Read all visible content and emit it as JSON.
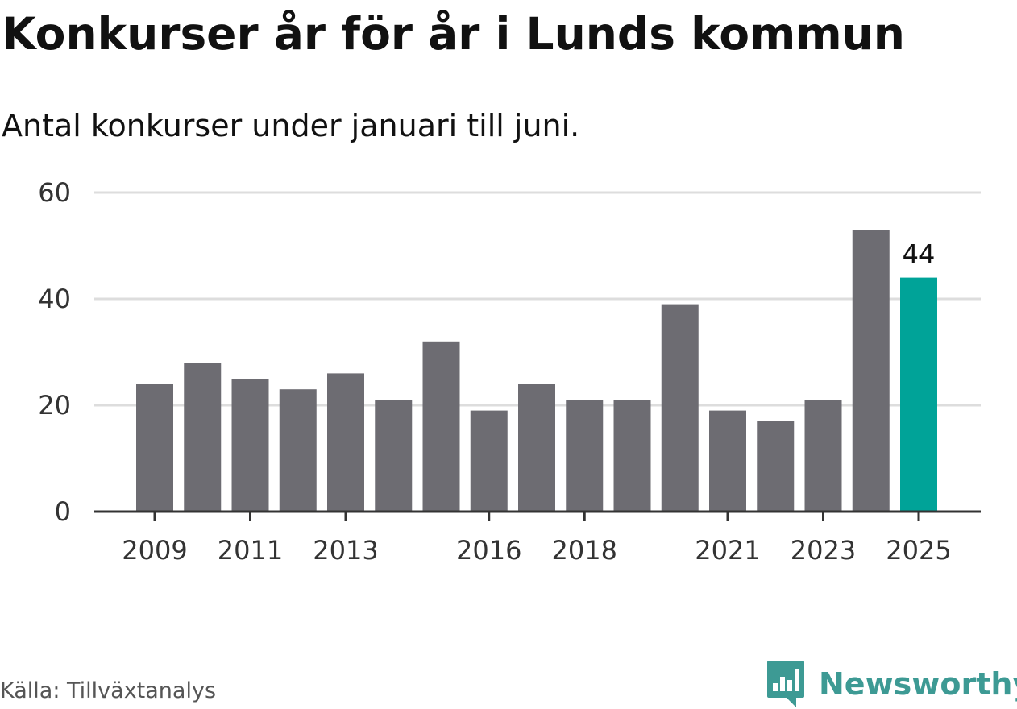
{
  "header": {
    "title": "Konkurser år för år i Lunds kommun",
    "subtitle": "Antal konkurser under januari till juni."
  },
  "footer": {
    "source": "Källa: Tillväxtanalys",
    "brand_name": "Newsworthy",
    "brand_icon": "bar-chart-speech-bubble-icon"
  },
  "colors": {
    "bar": "#6d6c72",
    "highlight": "#00a398",
    "grid": "#dddddd",
    "axis": "#333333",
    "brand": "#3d9a94"
  },
  "chart_data": {
    "type": "bar",
    "title": "Konkurser år för år i Lunds kommun",
    "subtitle": "Antal konkurser under januari till juni.",
    "categories": [
      "2009",
      "2010",
      "2011",
      "2012",
      "2013",
      "2014",
      "2015",
      "2016",
      "2017",
      "2018",
      "2019",
      "2020",
      "2021",
      "2022",
      "2023",
      "2024",
      "2025"
    ],
    "values": [
      24,
      28,
      25,
      23,
      26,
      21,
      32,
      19,
      24,
      21,
      21,
      39,
      19,
      17,
      21,
      53,
      44
    ],
    "x_tick_labels": [
      "2009",
      "2011",
      "2013",
      "2016",
      "2018",
      "2021",
      "2023",
      "2025"
    ],
    "y_ticks": [
      0,
      20,
      40,
      60
    ],
    "ylim": [
      0,
      60
    ],
    "grid": true,
    "highlight_category": "2025",
    "data_labels": [
      {
        "category": "2025",
        "text": "44"
      }
    ],
    "xlabel": "",
    "ylabel": ""
  }
}
